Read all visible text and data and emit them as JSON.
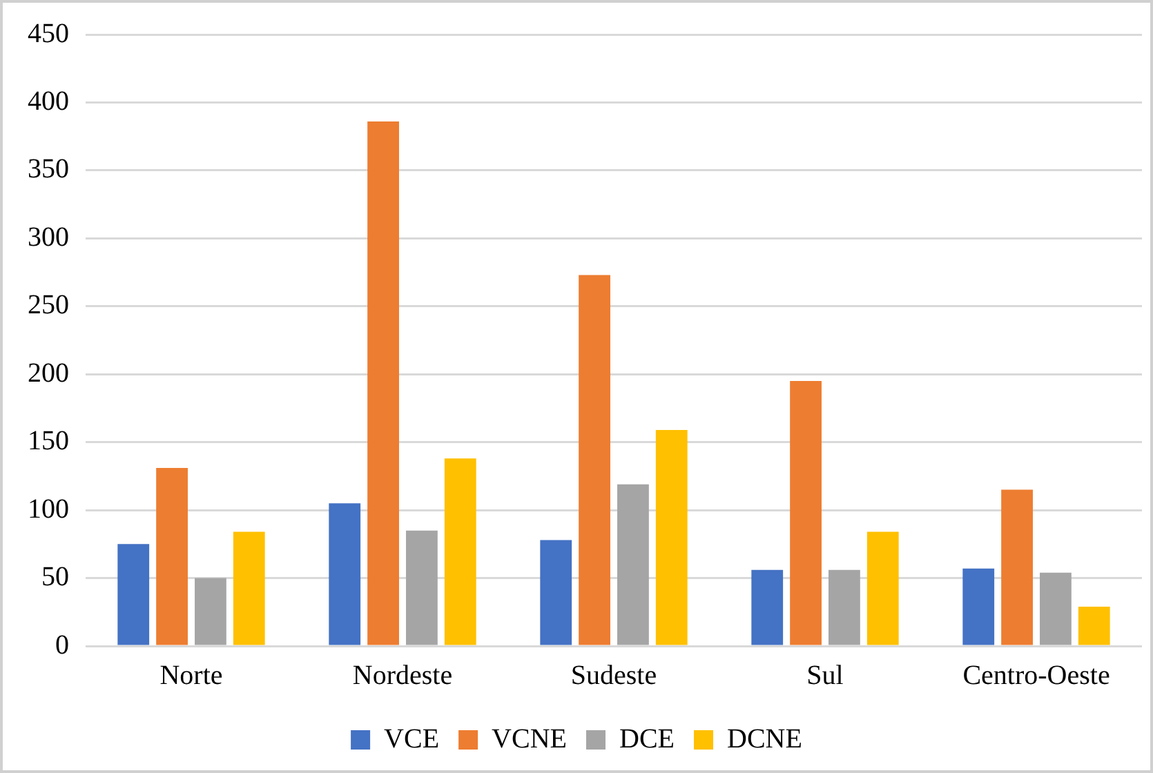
{
  "chart_data": {
    "type": "bar",
    "categories": [
      "Norte",
      "Nordeste",
      "Sudeste",
      "Sul",
      "Centro-Oeste"
    ],
    "series": [
      {
        "name": "VCE",
        "color": "#4472c4",
        "values": [
          75,
          105,
          78,
          56,
          57
        ]
      },
      {
        "name": "VCNE",
        "color": "#ed7d31",
        "values": [
          131,
          386,
          273,
          195,
          115
        ]
      },
      {
        "name": "DCE",
        "color": "#a5a5a5",
        "values": [
          50,
          85,
          119,
          56,
          54
        ]
      },
      {
        "name": "DCNE",
        "color": "#ffc000",
        "values": [
          84,
          138,
          159,
          84,
          29
        ]
      }
    ],
    "ylim": [
      0,
      450
    ],
    "yticks": [
      0,
      50,
      100,
      150,
      200,
      250,
      300,
      350,
      400,
      450
    ],
    "grid": "y",
    "legend": "bottom"
  }
}
